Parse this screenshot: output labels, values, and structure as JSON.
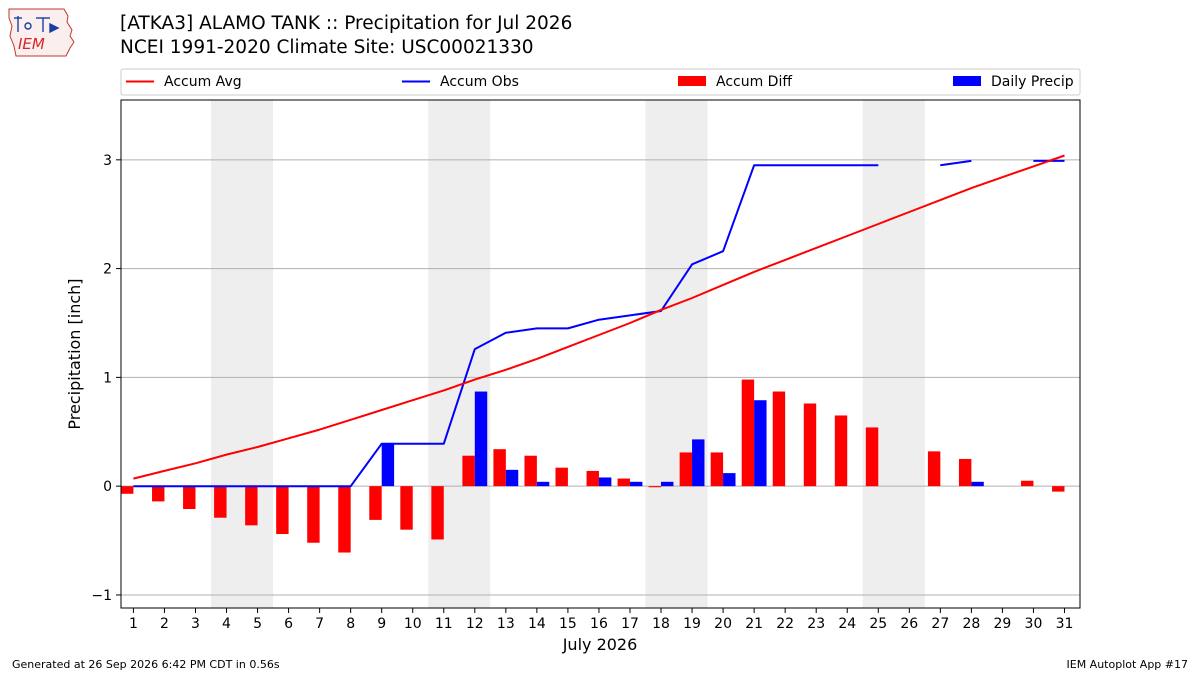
{
  "header": {
    "logo_text": "IEM",
    "title_line1": "[ATKA3] ALAMO TANK :: Precipitation for Jul 2026",
    "title_line2": "NCEI 1991-2020 Climate Site: USC00021330"
  },
  "footer": {
    "left": "Generated at 26 Sep 2026 6:42 PM CDT in 0.56s",
    "right": "IEM Autoplot App #17"
  },
  "colors": {
    "accum_avg": "#ff0000",
    "accum_obs": "#0000ff",
    "accum_diff": "#ff0000",
    "daily_precip": "#0000ff",
    "weekend_band": "#eeeeee",
    "grid": "#b0b0b0"
  },
  "chart_data": {
    "type": "bar",
    "xlabel": "July 2026",
    "ylabel": "Precipitation [inch]",
    "ylim": [
      -1.12,
      3.55
    ],
    "xlim": [
      0.6,
      31.5
    ],
    "yticks": [
      -1,
      0,
      1,
      2,
      3
    ],
    "grid": "horizontal",
    "legend_position": "top",
    "legend": [
      "Accum Avg",
      "Accum Obs",
      "Accum Diff",
      "Daily Precip"
    ],
    "days": [
      1,
      2,
      3,
      4,
      5,
      6,
      7,
      8,
      9,
      10,
      11,
      12,
      13,
      14,
      15,
      16,
      17,
      18,
      19,
      20,
      21,
      22,
      23,
      24,
      25,
      26,
      27,
      28,
      29,
      30,
      31
    ],
    "shaded_weekends": [
      [
        3.5,
        5.5
      ],
      [
        10.5,
        12.5
      ],
      [
        17.5,
        19.5
      ],
      [
        24.5,
        26.5
      ]
    ],
    "series": [
      {
        "name": "Accum Avg",
        "kind": "line",
        "values": [
          0.07,
          0.14,
          0.21,
          0.29,
          0.36,
          0.44,
          0.52,
          0.61,
          0.7,
          0.79,
          0.88,
          0.98,
          1.07,
          1.17,
          1.28,
          1.39,
          1.5,
          1.62,
          1.73,
          1.85,
          1.97,
          2.08,
          2.19,
          2.3,
          2.41,
          2.52,
          2.63,
          2.74,
          2.84,
          2.94,
          3.04
        ]
      },
      {
        "name": "Accum Obs",
        "kind": "line",
        "values": [
          0.0,
          0.0,
          0.0,
          0.0,
          0.0,
          0.0,
          0.0,
          0.0,
          0.39,
          0.39,
          0.39,
          1.26,
          1.41,
          1.45,
          1.45,
          1.53,
          1.57,
          1.61,
          2.04,
          2.16,
          2.95,
          2.95,
          2.95,
          2.95,
          2.95,
          null,
          2.95,
          2.99,
          null,
          2.99,
          2.99
        ]
      },
      {
        "name": "Accum Diff",
        "kind": "bar",
        "values": [
          -0.07,
          -0.14,
          -0.21,
          -0.29,
          -0.36,
          -0.44,
          -0.52,
          -0.61,
          -0.31,
          -0.4,
          -0.49,
          0.28,
          0.34,
          0.28,
          0.17,
          0.14,
          0.07,
          -0.01,
          0.31,
          0.31,
          0.98,
          0.87,
          0.76,
          0.65,
          0.54,
          null,
          0.32,
          0.25,
          null,
          0.05,
          -0.05
        ]
      },
      {
        "name": "Daily Precip",
        "kind": "bar",
        "values": [
          0,
          0,
          0,
          0,
          0,
          0,
          0,
          0,
          0.39,
          0,
          0,
          0.87,
          0.15,
          0.04,
          0,
          0.08,
          0.04,
          0.04,
          0.43,
          0.12,
          0.79,
          0,
          0,
          0,
          0,
          null,
          0,
          0.04,
          null,
          0,
          0
        ]
      }
    ]
  }
}
